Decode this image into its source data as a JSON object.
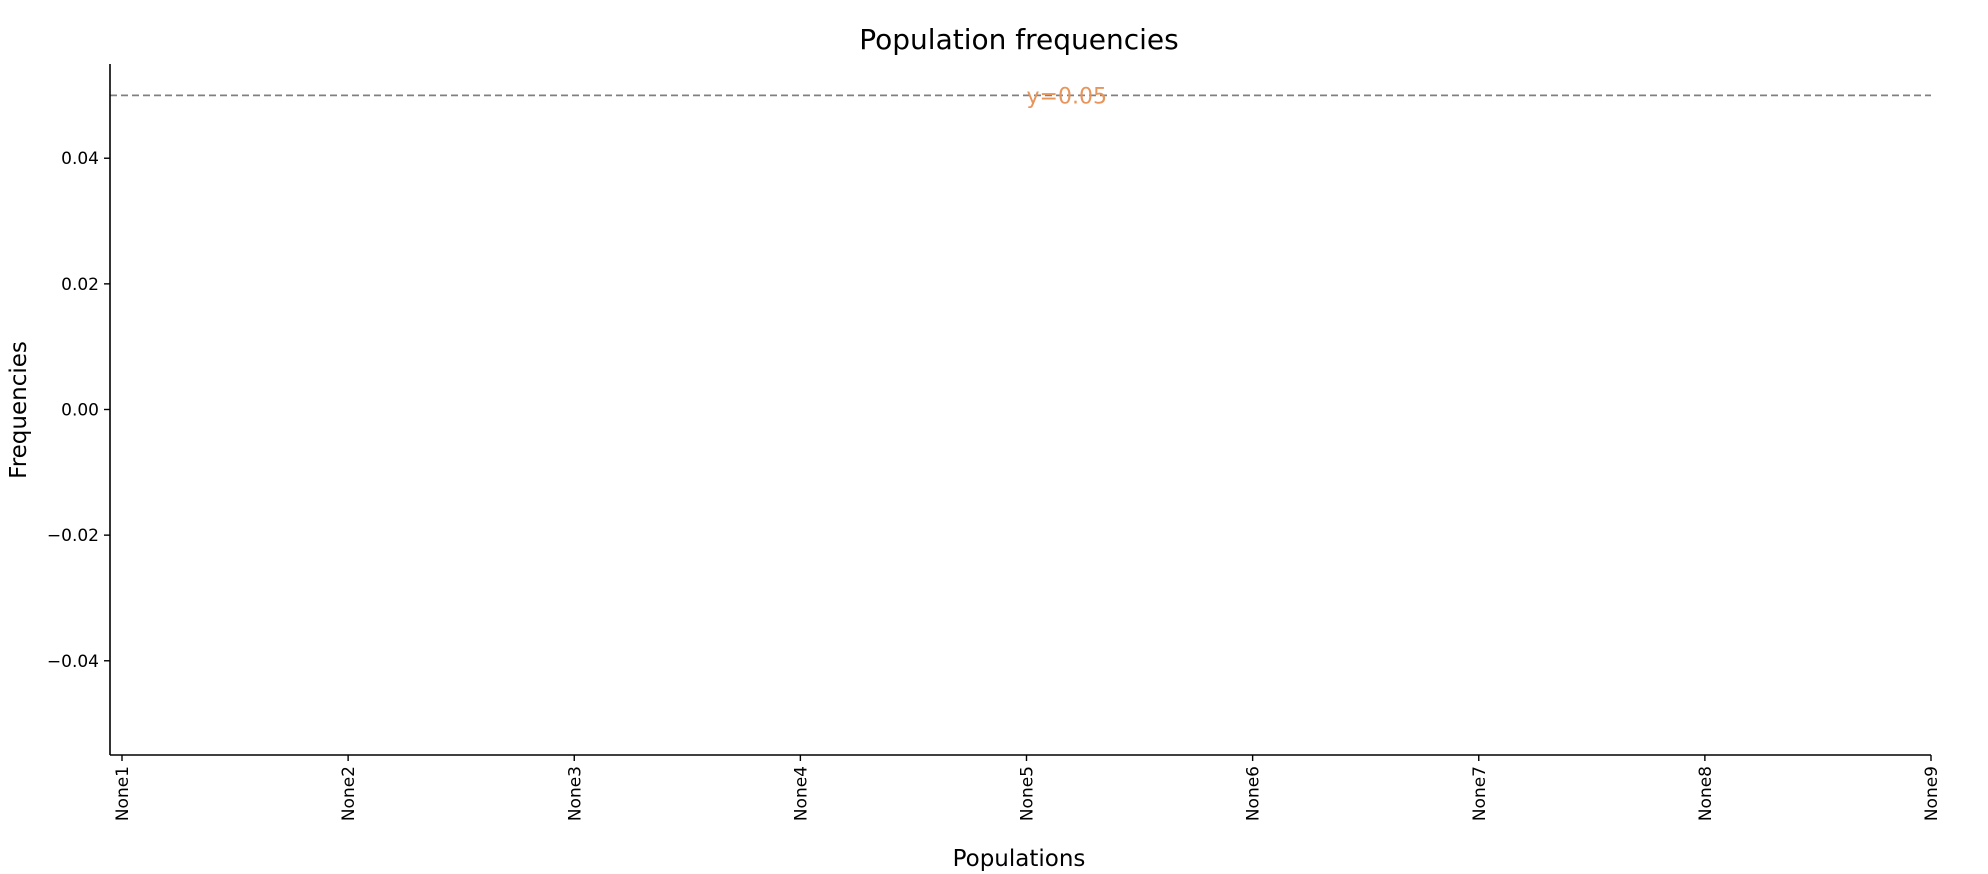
{
  "chart_data": {
    "type": "line",
    "title": "Population frequencies",
    "xlabel": "Populations",
    "ylabel": "Frequencies",
    "categories": [
      "None1",
      "None2",
      "None3",
      "None4",
      "None5",
      "None6",
      "None7",
      "None8",
      "None9"
    ],
    "yticks": [
      -0.04,
      -0.02,
      0.0,
      0.02,
      0.04
    ],
    "ytick_labels": [
      "−0.04",
      "−0.02",
      "0.00",
      "0.02",
      "0.04"
    ],
    "ylim": [
      -0.055,
      0.055
    ],
    "series": [],
    "reference_line": {
      "y": 0.05,
      "label": "y=0.05",
      "line_color": "#808080",
      "label_color": "#e8955b",
      "style": "dashed"
    },
    "grid": false
  }
}
